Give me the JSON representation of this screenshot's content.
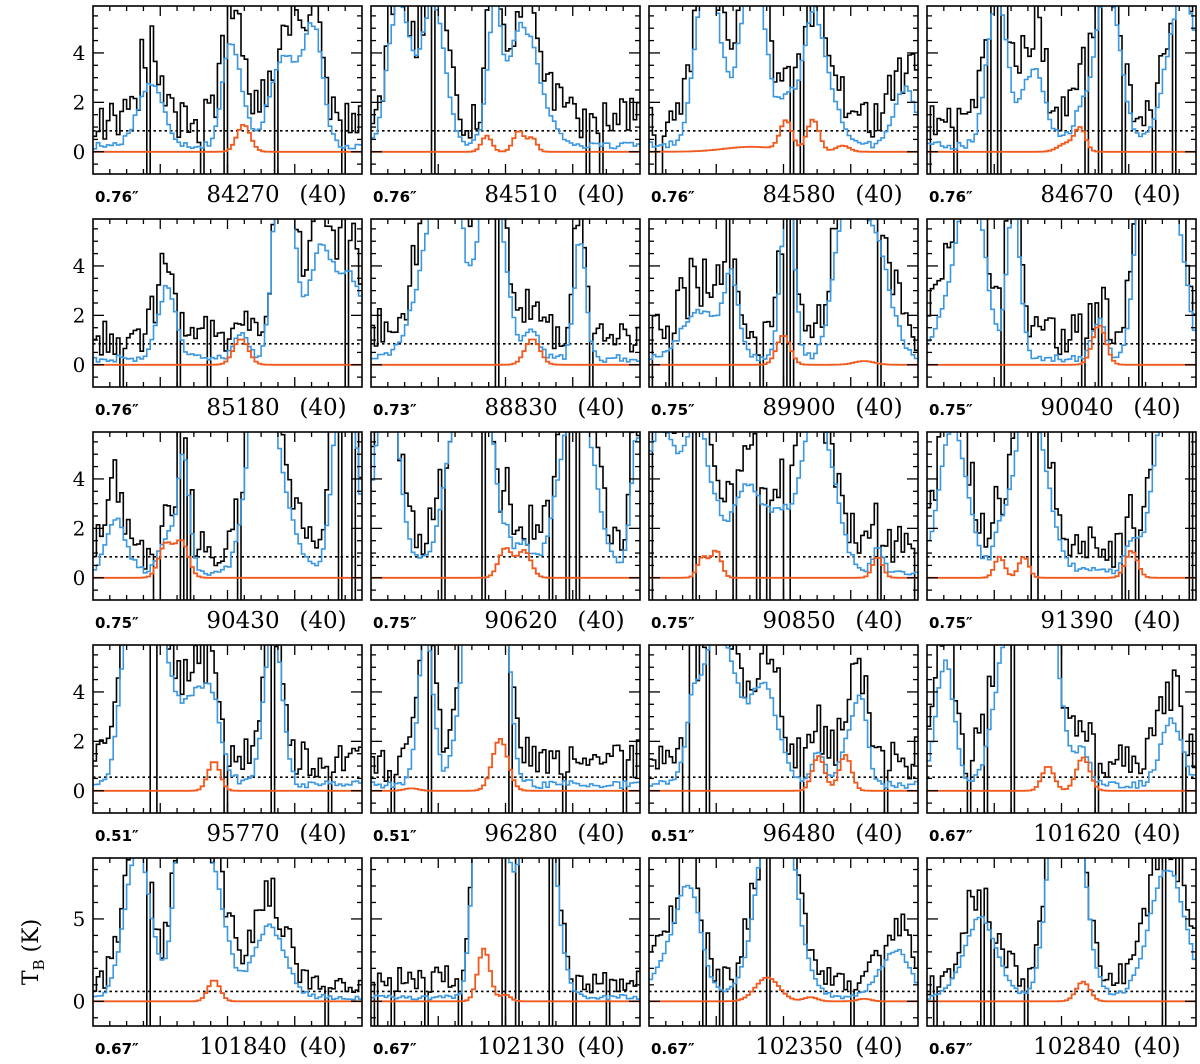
{
  "colors": {
    "observed": "#000000",
    "model_full": "#3a97e0",
    "model_molecule": "#f05a1e",
    "threshold": "#000000"
  },
  "chart_data": {
    "type": "line",
    "title": "",
    "ylabel": "T_B (K)",
    "ylabel_main": "T",
    "ylabel_sub": "B",
    "ylabel_unit": " (K)",
    "channels": 80,
    "rows": [
      {
        "ylim": [
          -0.9,
          5.9
        ],
        "yticks": [
          0,
          2,
          4
        ]
      },
      {
        "ylim": [
          -0.9,
          5.9
        ],
        "yticks": [
          0,
          2,
          4
        ]
      },
      {
        "ylim": [
          -0.9,
          5.9
        ],
        "yticks": [
          0,
          2,
          4
        ]
      },
      {
        "ylim": [
          -0.9,
          5.9
        ],
        "yticks": [
          0,
          2,
          4
        ]
      },
      {
        "ylim": [
          -1.5,
          8.7
        ],
        "yticks": [
          0,
          5
        ]
      }
    ],
    "panels": [
      {
        "beam": "0.76″",
        "freq": "84270",
        "width": "(40)",
        "threshold": 0.85,
        "peaks": [
          [
            0.56,
            1.1,
            2.0
          ]
        ]
      },
      {
        "beam": "0.76″",
        "freq": "84510",
        "width": "(40)",
        "threshold": 0.85,
        "peaks": [
          [
            0.43,
            0.65,
            1.5
          ],
          [
            0.55,
            0.85,
            1.6
          ],
          [
            0.6,
            0.55,
            1.3
          ]
        ]
      },
      {
        "beam": "0.76″",
        "freq": "84580",
        "width": "(40)",
        "threshold": 0.85,
        "peaks": [
          [
            0.38,
            0.2,
            8.0
          ],
          [
            0.51,
            1.2,
            1.8
          ],
          [
            0.61,
            1.3,
            1.8
          ],
          [
            0.72,
            0.25,
            2.0
          ]
        ]
      },
      {
        "beam": "0.76″",
        "freq": "84670",
        "width": "(40)",
        "threshold": 0.85,
        "peaks": [
          [
            0.52,
            0.35,
            2.5
          ],
          [
            0.57,
            0.9,
            1.6
          ]
        ]
      },
      {
        "beam": "0.76″",
        "freq": "85180",
        "width": "(40)",
        "threshold": 0.85,
        "peaks": [
          [
            0.55,
            1.05,
            2.2
          ]
        ]
      },
      {
        "beam": "0.73″",
        "freq": "88830",
        "width": "(40)",
        "threshold": 0.85,
        "peaks": [
          [
            0.6,
            1.05,
            2.2
          ]
        ]
      },
      {
        "beam": "0.75″",
        "freq": "89900",
        "width": "(40)",
        "threshold": 0.85,
        "peaks": [
          [
            0.5,
            1.2,
            2.0
          ],
          [
            0.8,
            0.15,
            3.0
          ]
        ]
      },
      {
        "beam": "0.75″",
        "freq": "90040",
        "width": "(40)",
        "threshold": 0.85,
        "peaks": [
          [
            0.64,
            1.6,
            2.0
          ]
        ]
      },
      {
        "beam": "0.75″",
        "freq": "90430",
        "width": "(40)",
        "threshold": 0.85,
        "peaks": [
          [
            0.27,
            1.35,
            2.0
          ],
          [
            0.33,
            1.45,
            2.0
          ]
        ]
      },
      {
        "beam": "0.75″",
        "freq": "90620",
        "width": "(40)",
        "threshold": 0.85,
        "peaks": [
          [
            0.5,
            1.2,
            2.0
          ],
          [
            0.57,
            1.1,
            2.0
          ]
        ]
      },
      {
        "beam": "0.75″",
        "freq": "90850",
        "width": "(40)",
        "threshold": 0.85,
        "peaks": [
          [
            0.2,
            0.85,
            1.5
          ],
          [
            0.25,
            1.1,
            1.5
          ],
          [
            0.85,
            0.85,
            1.5
          ]
        ]
      },
      {
        "beam": "0.75″",
        "freq": "91390",
        "width": "(40)",
        "threshold": 0.85,
        "peaks": [
          [
            0.27,
            0.85,
            1.5
          ],
          [
            0.36,
            0.85,
            1.5
          ],
          [
            0.76,
            1.1,
            1.8
          ]
        ]
      },
      {
        "beam": "0.51″",
        "freq": "95770",
        "width": "(40)",
        "threshold": 0.55,
        "peaks": [
          [
            0.45,
            1.2,
            1.8
          ]
        ]
      },
      {
        "beam": "0.51″",
        "freq": "96280",
        "width": "(40)",
        "threshold": 0.55,
        "peaks": [
          [
            0.15,
            0.1,
            2.0
          ],
          [
            0.48,
            2.1,
            2.3
          ]
        ]
      },
      {
        "beam": "0.51″",
        "freq": "96480",
        "width": "(40)",
        "threshold": 0.55,
        "peaks": [
          [
            0.63,
            1.4,
            1.8
          ],
          [
            0.73,
            1.45,
            1.8
          ]
        ]
      },
      {
        "beam": "0.67″",
        "freq": "101620",
        "width": "(40)",
        "threshold": 0.55,
        "peaks": [
          [
            0.45,
            1.0,
            1.8
          ],
          [
            0.58,
            1.35,
            2.0
          ]
        ]
      },
      {
        "beam": "0.67″",
        "freq": "101840",
        "width": "(40)",
        "threshold": 0.6,
        "peaks": [
          [
            0.45,
            1.3,
            1.8
          ]
        ]
      },
      {
        "beam": "0.67″",
        "freq": "102130",
        "width": "(40)",
        "threshold": 0.6,
        "peaks": [
          [
            0.42,
            3.2,
            1.8
          ],
          [
            0.5,
            0.4,
            1.5
          ]
        ]
      },
      {
        "beam": "0.67″",
        "freq": "102350",
        "width": "(40)",
        "threshold": 0.6,
        "peaks": [
          [
            0.44,
            1.45,
            3.5
          ],
          [
            0.6,
            0.25,
            2.0
          ],
          [
            0.8,
            0.15,
            2.0
          ]
        ]
      },
      {
        "beam": "0.67″",
        "freq": "102840",
        "width": "(40)",
        "threshold": 0.6,
        "peaks": [
          [
            0.58,
            1.2,
            2.0
          ]
        ]
      }
    ]
  }
}
